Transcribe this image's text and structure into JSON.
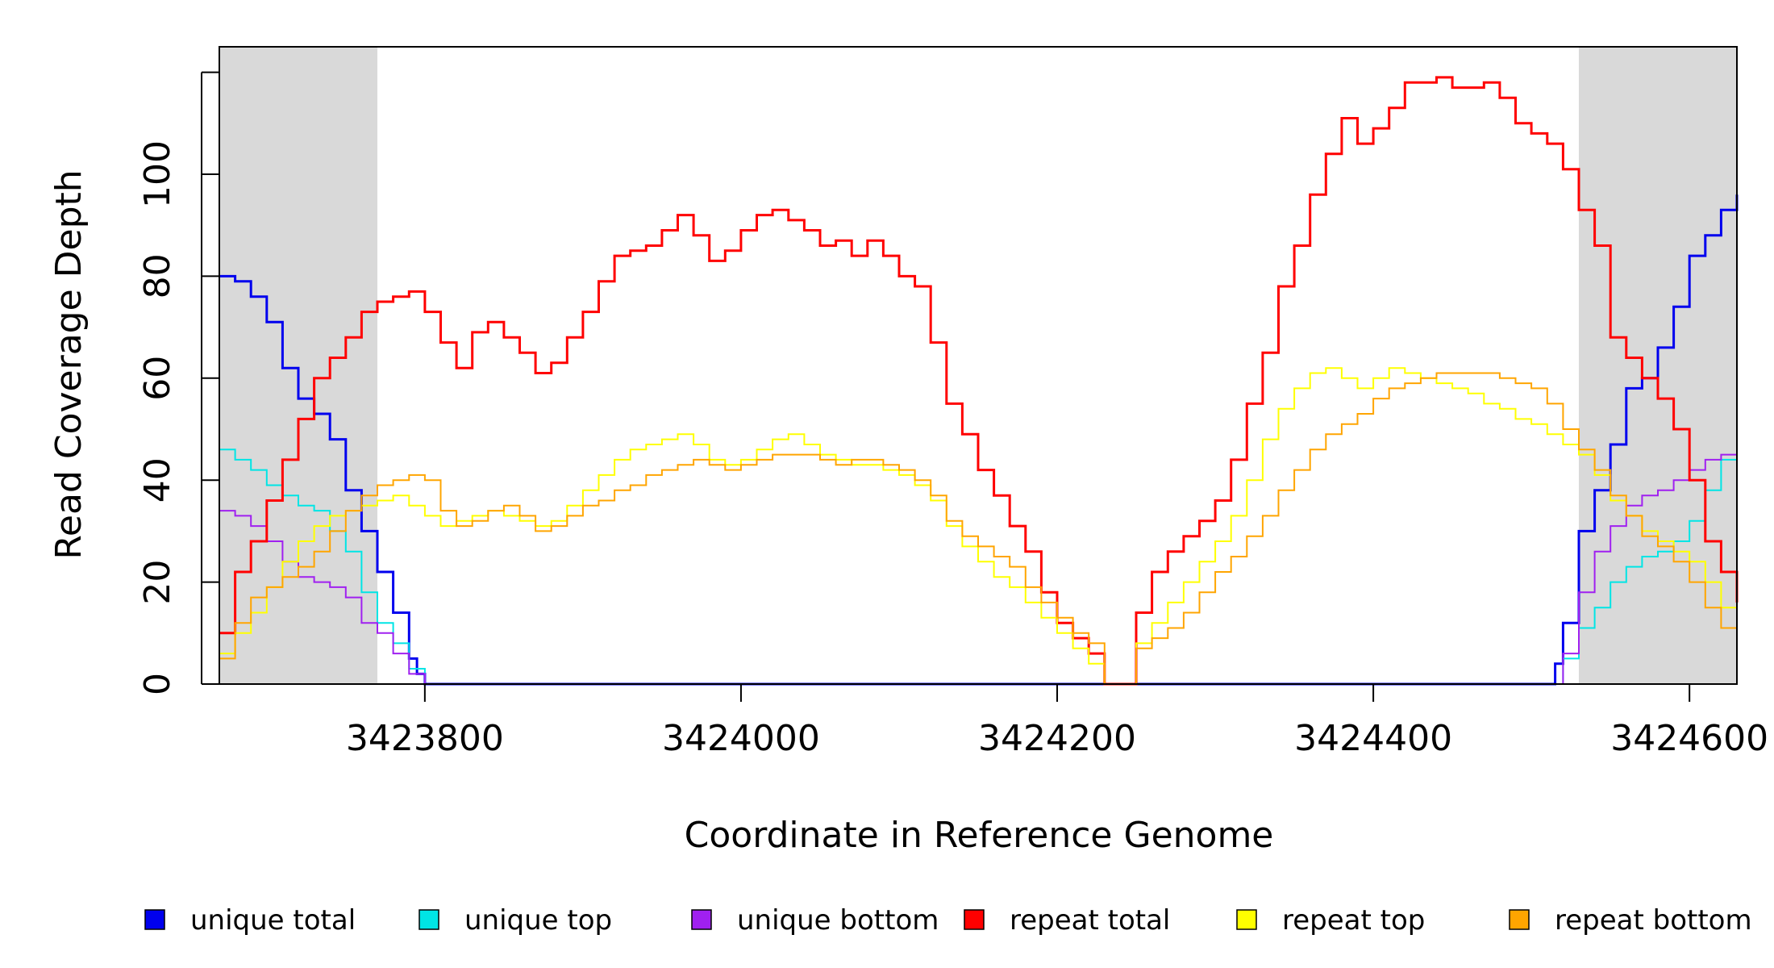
{
  "chart_data": {
    "type": "line",
    "title": "",
    "xlabel": "Coordinate in Reference Genome",
    "ylabel": "Read Coverage Depth",
    "xlim": [
      3423670,
      3424630
    ],
    "ylim": [
      0,
      125
    ],
    "x_ticks": [
      3423800,
      3424000,
      3424200,
      3424400,
      3424600
    ],
    "x_tick_labels": [
      "3423800",
      "3424000",
      "3424200",
      "3424400",
      "3424600"
    ],
    "y_ticks": [
      0,
      20,
      40,
      60,
      80,
      100
    ],
    "y_tick_labels": [
      "0",
      "20",
      "40",
      "60",
      "80",
      "100"
    ],
    "grid": false,
    "legend_position": "bottom",
    "shaded_regions": [
      [
        3423670,
        3423770
      ],
      [
        3424530,
        3424630
      ]
    ],
    "series": [
      {
        "name": "unique total",
        "color": "#0000ee",
        "width": 3,
        "x": [
          3423670,
          3423680,
          3423690,
          3423700,
          3423710,
          3423720,
          3423730,
          3423740,
          3423750,
          3423760,
          3423770,
          3423780,
          3423790,
          3423795,
          3423800,
          3424510,
          3424515,
          3424520,
          3424530,
          3424540,
          3424550,
          3424560,
          3424570,
          3424580,
          3424590,
          3424600,
          3424610,
          3424620,
          3424630
        ],
        "y": [
          80,
          79,
          76,
          71,
          62,
          56,
          53,
          48,
          38,
          30,
          22,
          14,
          5,
          2,
          0,
          0,
          4,
          12,
          30,
          38,
          47,
          58,
          60,
          66,
          74,
          84,
          88,
          93,
          96
        ]
      },
      {
        "name": "unique top",
        "color": "#00e5e5",
        "width": 2,
        "x": [
          3423670,
          3423680,
          3423690,
          3423700,
          3423710,
          3423720,
          3423730,
          3423740,
          3423750,
          3423760,
          3423770,
          3423780,
          3423790,
          3423800,
          3424510,
          3424520,
          3424530,
          3424540,
          3424550,
          3424560,
          3424570,
          3424580,
          3424590,
          3424600,
          3424610,
          3424620,
          3424630
        ],
        "y": [
          46,
          44,
          42,
          39,
          37,
          35,
          34,
          30,
          26,
          18,
          12,
          8,
          3,
          0,
          0,
          5,
          11,
          15,
          20,
          23,
          25,
          26,
          28,
          32,
          38,
          44,
          50
        ]
      },
      {
        "name": "unique bottom",
        "color": "#a020f0",
        "width": 2,
        "x": [
          3423670,
          3423680,
          3423690,
          3423700,
          3423710,
          3423720,
          3423730,
          3423740,
          3423750,
          3423760,
          3423770,
          3423780,
          3423790,
          3423800,
          3424510,
          3424520,
          3424530,
          3424540,
          3424550,
          3424560,
          3424570,
          3424580,
          3424590,
          3424600,
          3424610,
          3424620,
          3424630
        ],
        "y": [
          34,
          33,
          31,
          28,
          24,
          21,
          20,
          19,
          17,
          12,
          10,
          6,
          2,
          0,
          0,
          6,
          18,
          26,
          31,
          35,
          37,
          38,
          40,
          42,
          44,
          45,
          46
        ]
      },
      {
        "name": "repeat total",
        "color": "#ff0000",
        "width": 3,
        "x": [
          3423670,
          3423680,
          3423690,
          3423700,
          3423710,
          3423720,
          3423730,
          3423740,
          3423750,
          3423760,
          3423770,
          3423780,
          3423790,
          3423800,
          3423810,
          3423820,
          3423830,
          3423840,
          3423850,
          3423860,
          3423870,
          3423880,
          3423890,
          3423900,
          3423910,
          3423920,
          3423930,
          3423940,
          3423950,
          3423960,
          3423970,
          3423980,
          3423990,
          3424000,
          3424010,
          3424020,
          3424030,
          3424040,
          3424050,
          3424060,
          3424070,
          3424080,
          3424090,
          3424100,
          3424110,
          3424120,
          3424130,
          3424140,
          3424150,
          3424160,
          3424170,
          3424180,
          3424190,
          3424200,
          3424210,
          3424220,
          3424230,
          3424232,
          3424240,
          3424242,
          3424250,
          3424260,
          3424270,
          3424280,
          3424290,
          3424300,
          3424310,
          3424320,
          3424330,
          3424340,
          3424350,
          3424360,
          3424370,
          3424380,
          3424390,
          3424400,
          3424410,
          3424420,
          3424430,
          3424440,
          3424450,
          3424460,
          3424470,
          3424480,
          3424490,
          3424500,
          3424510,
          3424520,
          3424530,
          3424540,
          3424550,
          3424560,
          3424570,
          3424580,
          3424590,
          3424600,
          3424610,
          3424620,
          3424630
        ],
        "y": [
          10,
          22,
          28,
          36,
          44,
          52,
          60,
          64,
          68,
          73,
          75,
          76,
          77,
          73,
          67,
          62,
          69,
          71,
          68,
          65,
          61,
          63,
          68,
          73,
          79,
          84,
          85,
          86,
          89,
          92,
          88,
          83,
          85,
          89,
          92,
          93,
          91,
          89,
          86,
          87,
          84,
          87,
          84,
          80,
          78,
          67,
          55,
          49,
          42,
          37,
          31,
          26,
          18,
          12,
          9,
          6,
          0,
          0,
          0,
          0,
          14,
          22,
          26,
          29,
          32,
          36,
          44,
          55,
          65,
          78,
          86,
          96,
          104,
          111,
          106,
          109,
          113,
          118,
          118,
          119,
          117,
          117,
          118,
          115,
          110,
          108,
          106,
          101,
          93,
          86,
          68,
          64,
          60,
          56,
          50,
          40,
          28,
          22,
          16
        ]
      },
      {
        "name": "repeat top",
        "color": "#ffff00",
        "width": 2,
        "x": [
          3423670,
          3423680,
          3423690,
          3423700,
          3423710,
          3423720,
          3423730,
          3423740,
          3423750,
          3423760,
          3423770,
          3423780,
          3423790,
          3423800,
          3423810,
          3423820,
          3423830,
          3423840,
          3423850,
          3423860,
          3423870,
          3423880,
          3423890,
          3423900,
          3423910,
          3423920,
          3423930,
          3423940,
          3423950,
          3423960,
          3423970,
          3423980,
          3423990,
          3424000,
          3424010,
          3424020,
          3424030,
          3424040,
          3424050,
          3424060,
          3424070,
          3424080,
          3424090,
          3424100,
          3424110,
          3424120,
          3424130,
          3424140,
          3424150,
          3424160,
          3424170,
          3424180,
          3424190,
          3424200,
          3424210,
          3424220,
          3424230,
          3424232,
          3424240,
          3424242,
          3424250,
          3424260,
          3424270,
          3424280,
          3424290,
          3424300,
          3424310,
          3424320,
          3424330,
          3424340,
          3424350,
          3424360,
          3424370,
          3424380,
          3424390,
          3424400,
          3424410,
          3424420,
          3424430,
          3424440,
          3424450,
          3424460,
          3424470,
          3424480,
          3424490,
          3424500,
          3424510,
          3424520,
          3424530,
          3424540,
          3424550,
          3424560,
          3424570,
          3424580,
          3424590,
          3424600,
          3424610,
          3424620,
          3424630
        ],
        "y": [
          6,
          10,
          14,
          19,
          24,
          28,
          31,
          33,
          34,
          35,
          36,
          37,
          35,
          33,
          31,
          32,
          33,
          34,
          33,
          32,
          31,
          32,
          35,
          38,
          41,
          44,
          46,
          47,
          48,
          49,
          47,
          44,
          43,
          44,
          46,
          48,
          49,
          47,
          45,
          44,
          43,
          43,
          42,
          41,
          39,
          36,
          31,
          27,
          24,
          21,
          19,
          16,
          13,
          10,
          7,
          4,
          0,
          0,
          0,
          0,
          8,
          12,
          16,
          20,
          24,
          28,
          33,
          40,
          48,
          54,
          58,
          61,
          62,
          60,
          58,
          60,
          62,
          61,
          60,
          59,
          58,
          57,
          55,
          54,
          52,
          51,
          49,
          47,
          45,
          41,
          36,
          33,
          30,
          28,
          26,
          24,
          20,
          15,
          11
        ]
      },
      {
        "name": "repeat bottom",
        "color": "#ffa500",
        "width": 2,
        "x": [
          3423670,
          3423680,
          3423690,
          3423700,
          3423710,
          3423720,
          3423730,
          3423740,
          3423750,
          3423760,
          3423770,
          3423780,
          3423790,
          3423800,
          3423810,
          3423820,
          3423830,
          3423840,
          3423850,
          3423860,
          3423870,
          3423880,
          3423890,
          3423900,
          3423910,
          3423920,
          3423930,
          3423940,
          3423950,
          3423960,
          3423970,
          3423980,
          3423990,
          3424000,
          3424010,
          3424020,
          3424030,
          3424040,
          3424050,
          3424060,
          3424070,
          3424080,
          3424090,
          3424100,
          3424110,
          3424120,
          3424130,
          3424140,
          3424150,
          3424160,
          3424170,
          3424180,
          3424190,
          3424200,
          3424210,
          3424220,
          3424230,
          3424232,
          3424240,
          3424242,
          3424250,
          3424260,
          3424270,
          3424280,
          3424290,
          3424300,
          3424310,
          3424320,
          3424330,
          3424340,
          3424350,
          3424360,
          3424370,
          3424380,
          3424390,
          3424400,
          3424410,
          3424420,
          3424430,
          3424440,
          3424450,
          3424460,
          3424470,
          3424480,
          3424490,
          3424500,
          3424510,
          3424520,
          3424530,
          3424540,
          3424550,
          3424560,
          3424570,
          3424580,
          3424590,
          3424600,
          3424610,
          3424620,
          3424630
        ],
        "y": [
          5,
          12,
          17,
          19,
          21,
          23,
          26,
          30,
          34,
          37,
          39,
          40,
          41,
          40,
          34,
          31,
          32,
          34,
          35,
          33,
          30,
          31,
          33,
          35,
          36,
          38,
          39,
          41,
          42,
          43,
          44,
          43,
          42,
          43,
          44,
          45,
          45,
          45,
          44,
          43,
          44,
          44,
          43,
          42,
          40,
          37,
          32,
          29,
          27,
          25,
          23,
          19,
          16,
          13,
          10,
          8,
          0,
          0,
          0,
          0,
          7,
          9,
          11,
          14,
          18,
          22,
          25,
          29,
          33,
          38,
          42,
          46,
          49,
          51,
          53,
          56,
          58,
          59,
          60,
          61,
          61,
          61,
          61,
          60,
          59,
          58,
          55,
          50,
          46,
          42,
          37,
          33,
          29,
          27,
          24,
          20,
          15,
          11,
          7
        ]
      }
    ],
    "legend": [
      {
        "label": "unique total",
        "color": "#0000ee"
      },
      {
        "label": "unique top",
        "color": "#00e5e5"
      },
      {
        "label": "unique bottom",
        "color": "#a020f0"
      },
      {
        "label": "repeat total",
        "color": "#ff0000"
      },
      {
        "label": "repeat top",
        "color": "#ffff00"
      },
      {
        "label": "repeat bottom",
        "color": "#ffa500"
      }
    ]
  }
}
